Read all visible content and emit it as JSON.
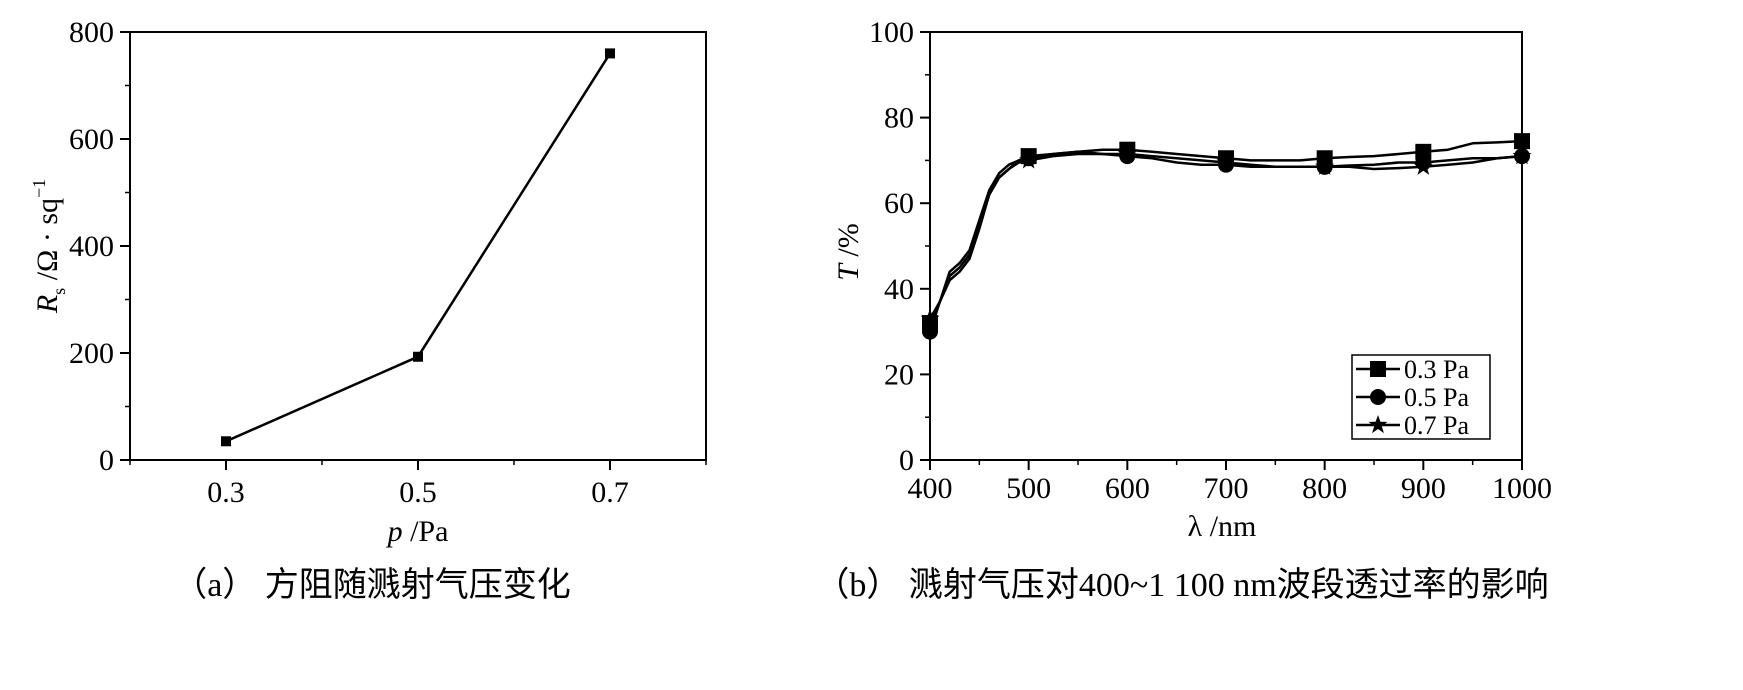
{
  "chart_data": [
    {
      "type": "line",
      "caption": "（a） 方阻随溅射气压变化",
      "xlabel_symbol": "p",
      "xlabel_unit": " /Pa",
      "ylabel_symbol": "R",
      "ylabel_subscript": "s",
      "ylabel_unit": " /Ω · sq",
      "ylabel_superscript": "−1",
      "x": [
        0.3,
        0.5,
        0.7
      ],
      "x_tick_labels": [
        "0.3",
        "0.5",
        "0.7"
      ],
      "xlim": [
        0.2,
        0.8
      ],
      "ylim": [
        0,
        800
      ],
      "y_tick_labels": [
        "0",
        "200",
        "400",
        "600",
        "800"
      ],
      "series": [
        {
          "values": [
            35,
            193,
            760
          ],
          "marker": "square"
        }
      ],
      "grid": false
    },
    {
      "type": "line",
      "caption": "（b） 溅射气压对400~1 100 nm波段透过率的影响",
      "xlabel_symbol": "λ",
      "xlabel_unit": " /nm",
      "ylabel_symbol": "T",
      "ylabel_unit": " /%",
      "xlim": [
        400,
        1000
      ],
      "ylim": [
        0,
        100
      ],
      "x_tick_labels": [
        "400",
        "500",
        "600",
        "700",
        "800",
        "900",
        "1000"
      ],
      "y_tick_labels": [
        "0",
        "20",
        "40",
        "60",
        "80",
        "100"
      ],
      "legend_position": "bottom-right",
      "x": [
        400,
        410,
        420,
        430,
        440,
        450,
        460,
        470,
        480,
        490,
        500,
        525,
        550,
        575,
        600,
        625,
        650,
        675,
        700,
        725,
        750,
        775,
        800,
        825,
        850,
        875,
        900,
        925,
        950,
        975,
        1000
      ],
      "series": [
        {
          "name": "0.3 Pa",
          "marker": "square",
          "values": [
            32,
            37,
            42,
            44,
            47,
            54,
            62,
            66,
            68,
            70,
            71,
            71.5,
            72,
            72.5,
            72.5,
            72,
            71.5,
            71,
            70.5,
            70,
            70,
            70,
            70.5,
            70.8,
            71,
            71.5,
            72,
            72.5,
            74,
            74.2,
            74.5
          ]
        },
        {
          "name": "0.5 Pa",
          "marker": "circle",
          "values": [
            30,
            37,
            44,
            46,
            49,
            56,
            63,
            67,
            69,
            70,
            70.5,
            71.5,
            72,
            71.5,
            71,
            70.5,
            69.5,
            69,
            69,
            68.5,
            68.5,
            68.5,
            68.5,
            68.8,
            69,
            69.5,
            69.5,
            70,
            70.5,
            70.5,
            71
          ]
        },
        {
          "name": "0.7 Pa",
          "marker": "star",
          "values": [
            33,
            37,
            43,
            45,
            48,
            55,
            62,
            66,
            68,
            69.5,
            70,
            71,
            71.5,
            71.5,
            71.5,
            71,
            70.5,
            70,
            69.5,
            69,
            68.5,
            68.5,
            68.5,
            68.5,
            68,
            68.2,
            68.5,
            69,
            69.5,
            70.5,
            71
          ]
        }
      ],
      "grid": false
    }
  ]
}
